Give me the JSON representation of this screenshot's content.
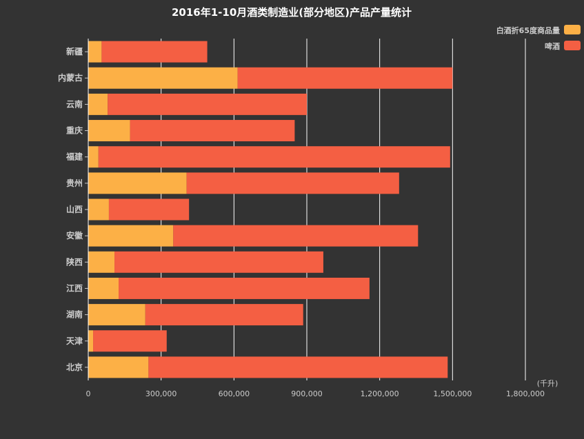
{
  "colors": {
    "background": "#333333",
    "baijiu": "#FCB046",
    "beer": "#F45F43",
    "grid": "#ffffff",
    "axis_text": "#cccccc",
    "title_text": "#ffffff"
  },
  "chart_data": {
    "type": "bar",
    "orientation": "horizontal",
    "stacked": true,
    "title": "2016年1-10月酒类制造业(部分地区)产品产量统计",
    "unit_label": "(千升)",
    "categories": [
      "新疆",
      "内蒙古",
      "云南",
      "重庆",
      "福建",
      "贵州",
      "山西",
      "安徽",
      "陕西",
      "江西",
      "湖南",
      "天津",
      "北京"
    ],
    "series": [
      {
        "name": "白酒折65度商品量",
        "values": [
          55000,
          615000,
          80000,
          172000,
          42000,
          405000,
          85000,
          350000,
          108000,
          125000,
          235000,
          20000,
          248000
        ]
      },
      {
        "name": "啤酒",
        "values": [
          435000,
          885000,
          820000,
          678000,
          1448000,
          875000,
          330000,
          1008000,
          860000,
          1033000,
          650000,
          303000,
          1232000
        ]
      }
    ],
    "xlim": [
      0,
      1800000
    ],
    "xticks": [
      0,
      300000,
      600000,
      900000,
      1200000,
      1500000,
      1800000
    ],
    "xtick_labels": [
      "0",
      "300,000",
      "600,000",
      "900,000",
      "1,200,000",
      "1,500,000",
      "1,800,000"
    ],
    "grid": "vertical",
    "legend_position": "top-right"
  }
}
